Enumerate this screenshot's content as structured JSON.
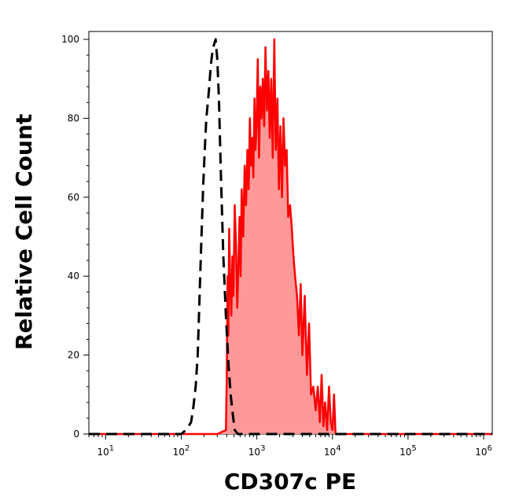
{
  "chart_data": {
    "type": "area",
    "title": "",
    "xlabel": "CD307c PE",
    "ylabel": "Relative Cell Count",
    "x_scale": "log",
    "xlim": [
      6,
      1300000
    ],
    "ylim": [
      0,
      102
    ],
    "x_ticks": [
      {
        "base": "10",
        "exp": "1",
        "value": 10
      },
      {
        "base": "10",
        "exp": "2",
        "value": 100
      },
      {
        "base": "10",
        "exp": "3",
        "value": 1000
      },
      {
        "base": "10",
        "exp": "4",
        "value": 10000
      },
      {
        "base": "10",
        "exp": "5",
        "value": 100000
      },
      {
        "base": "10",
        "exp": "6",
        "value": 1000000
      }
    ],
    "y_ticks": [
      "0",
      "20",
      "40",
      "60",
      "80",
      "100"
    ],
    "grid": false,
    "series": [
      {
        "style": "dashed",
        "color": "#000000",
        "x": [
          6,
          30,
          60,
          100,
          115,
          125,
          135,
          145,
          155,
          165,
          175,
          185,
          195,
          205,
          215,
          225,
          235,
          245,
          255,
          265,
          275,
          285,
          300,
          315,
          335,
          360,
          390,
          420,
          450,
          480,
          510,
          560,
          700,
          1000,
          10000,
          1300000
        ],
        "y": [
          0,
          0,
          0,
          0,
          1,
          2,
          3,
          7,
          12,
          20,
          35,
          50,
          63,
          72,
          80,
          84,
          88,
          93,
          96,
          98,
          99,
          100,
          95,
          85,
          65,
          45,
          30,
          18,
          10,
          5,
          1,
          0,
          0,
          0,
          0,
          0
        ]
      },
      {
        "style": "solid-filled",
        "color": "#ff0000",
        "fill": "#ff9999",
        "x": [
          6,
          100,
          300,
          390,
          400,
          410,
          420,
          430,
          445,
          460,
          475,
          490,
          510,
          530,
          550,
          570,
          590,
          610,
          630,
          660,
          690,
          720,
          750,
          780,
          810,
          840,
          870,
          900,
          930,
          960,
          990,
          1030,
          1070,
          1110,
          1150,
          1200,
          1250,
          1300,
          1360,
          1420,
          1480,
          1550,
          1620,
          1700,
          1780,
          1870,
          1960,
          2050,
          2150,
          2250,
          2360,
          2480,
          2600,
          2750,
          2900,
          3050,
          3200,
          3400,
          3600,
          3800,
          4000,
          4300,
          4600,
          4900,
          5200,
          5600,
          6000,
          6400,
          6800,
          7200,
          7600,
          8000,
          8500,
          9000,
          9500,
          10000,
          10500,
          11000,
          12000,
          20000,
          100000,
          1000000,
          1300000
        ],
        "y": [
          0,
          0,
          0,
          1,
          15,
          40,
          25,
          52,
          38,
          30,
          45,
          35,
          58,
          48,
          32,
          42,
          55,
          40,
          62,
          50,
          68,
          58,
          72,
          62,
          80,
          68,
          75,
          65,
          85,
          72,
          78,
          95,
          70,
          88,
          80,
          90,
          78,
          98,
          82,
          92,
          75,
          90,
          70,
          100,
          72,
          85,
          62,
          78,
          60,
          80,
          68,
          72,
          55,
          58,
          52,
          45,
          40,
          35,
          25,
          38,
          20,
          35,
          15,
          28,
          10,
          12,
          6,
          12,
          3,
          15,
          2,
          8,
          1,
          12,
          3,
          1,
          10,
          0,
          0,
          0,
          0,
          0,
          0
        ]
      }
    ]
  }
}
